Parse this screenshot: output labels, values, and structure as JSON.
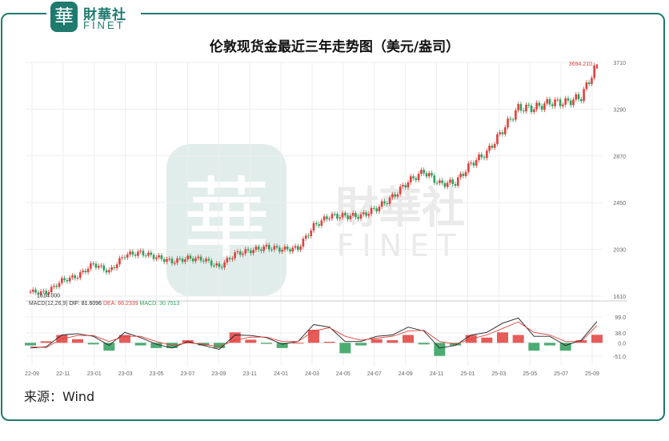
{
  "header": {
    "logo_glyph": "華",
    "logo_cn": "財華社",
    "logo_en": "FINET"
  },
  "watermark": {
    "glyph": "華",
    "cn": "財華社",
    "en": "FINET"
  },
  "title": "伦敦现货金最近三年走势图（美元/盎司）",
  "source": "来源：Wind",
  "colors": {
    "up": "#e0403c",
    "down": "#2e9e5c",
    "brand": "#1f7a6e",
    "grid": "#eeeeee"
  },
  "chart_data": {
    "type": "line",
    "title": "伦敦现货金最近三年走势图（美元/盎司）",
    "xlabel": "",
    "ylabel": "",
    "x_ticks": [
      "22-09",
      "22-11",
      "23-01",
      "23-03",
      "23-05",
      "23-07",
      "23-09",
      "23-11",
      "24-01",
      "24-03",
      "24-05",
      "24-07",
      "24-09",
      "24-11",
      "25-01",
      "25-03",
      "25-05",
      "25-07",
      "25-09"
    ],
    "y_ticks": [
      1610,
      2030,
      2450,
      2870,
      3290,
      3710
    ],
    "ylim": [
      1610,
      3710
    ],
    "max_label": "3694.210",
    "min_label": "1614.000",
    "price_series": {
      "name": "",
      "x": [
        "22-09",
        "22-10",
        "22-11",
        "22-12",
        "23-01",
        "23-02",
        "23-03",
        "23-04",
        "23-05",
        "23-06",
        "23-07",
        "23-08",
        "23-09",
        "23-10",
        "23-11",
        "23-12",
        "24-01",
        "24-02",
        "24-03",
        "24-04",
        "24-05",
        "24-06",
        "24-07",
        "24-08",
        "24-09",
        "24-10",
        "24-11",
        "24-12",
        "25-01",
        "25-02",
        "25-03",
        "25-04",
        "25-05",
        "25-06",
        "25-07",
        "25-08",
        "25-09"
      ],
      "values": [
        1650,
        1640,
        1750,
        1790,
        1900,
        1830,
        1980,
        2000,
        1960,
        1920,
        1950,
        1940,
        1870,
        1990,
        2020,
        2050,
        2030,
        2040,
        2240,
        2330,
        2330,
        2330,
        2400,
        2500,
        2640,
        2730,
        2620,
        2630,
        2800,
        2900,
        3100,
        3300,
        3300,
        3350,
        3350,
        3400,
        3694
      ]
    },
    "macd": {
      "label": "MACD(12,26,9)",
      "dif_label": "DIF: 81.6096",
      "dea_label": "DEA: 66.2339",
      "macd_label": "MACD: 30.7513",
      "y_ticks": [
        99.0,
        38.0,
        0.0,
        -51.0
      ],
      "ylim": [
        -51,
        99
      ],
      "dif": [
        -20,
        -15,
        30,
        35,
        25,
        -10,
        40,
        20,
        -5,
        -20,
        5,
        -10,
        -25,
        30,
        28,
        20,
        -5,
        5,
        70,
        60,
        5,
        5,
        25,
        30,
        60,
        45,
        -20,
        -10,
        30,
        40,
        75,
        95,
        25,
        25,
        -10,
        10,
        81.6
      ],
      "dea": [
        -15,
        -18,
        15,
        28,
        28,
        5,
        25,
        25,
        5,
        -10,
        0,
        -5,
        -15,
        10,
        22,
        22,
        5,
        5,
        45,
        58,
        25,
        10,
        18,
        25,
        45,
        48,
        5,
        -5,
        15,
        30,
        55,
        80,
        40,
        30,
        5,
        5,
        66.2
      ],
      "hist": [
        -10,
        6,
        30,
        14,
        -6,
        -30,
        30,
        -10,
        -20,
        -20,
        10,
        -10,
        -20,
        40,
        12,
        -4,
        -20,
        0,
        50,
        4,
        -40,
        -10,
        14,
        10,
        30,
        -6,
        -50,
        -10,
        30,
        20,
        40,
        30,
        -30,
        -10,
        -30,
        10,
        30.8
      ]
    }
  }
}
